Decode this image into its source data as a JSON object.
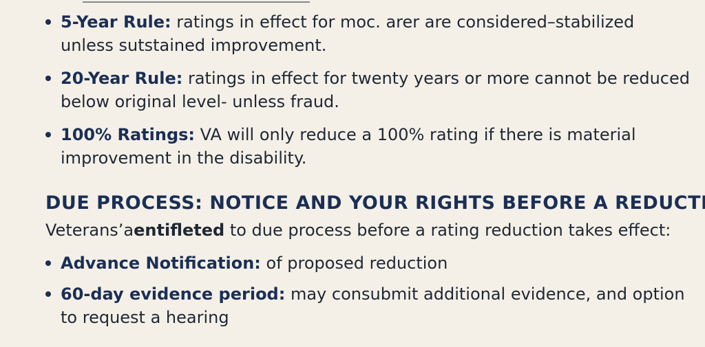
{
  "rules": [
    {
      "term": "5-Year Rule:",
      "line1": " ratings in effect for moc. arer are considered–stabilized",
      "line2": "unless sutstained improvement."
    },
    {
      "term": "20-Year Rule:",
      "line1": " ratings in effect for twenty years or more cannot be reduced",
      "line2": "below original level- unless fraud."
    },
    {
      "term": "100% Ratings:",
      "line1": " VA will only reduce a 100% rating if there is material",
      "line2": "improvement in the disability."
    }
  ],
  "due_process": {
    "heading": "DUE PROCESS: NOTICE AND YOUR RIGHTS BEFORE A REDUCTION",
    "intro_start": "Veterans’a",
    "intro_emphasis": "entifleted",
    "intro_end": " to due process before a rating reduction takes effect:",
    "items": [
      {
        "term": "Advance Notification:",
        "line1": " of proposed reduction"
      },
      {
        "term": "60-day evidence period:",
        "line1": " may consubmit additional evidence, and option",
        "line2": "to request a hearing"
      }
    ]
  }
}
